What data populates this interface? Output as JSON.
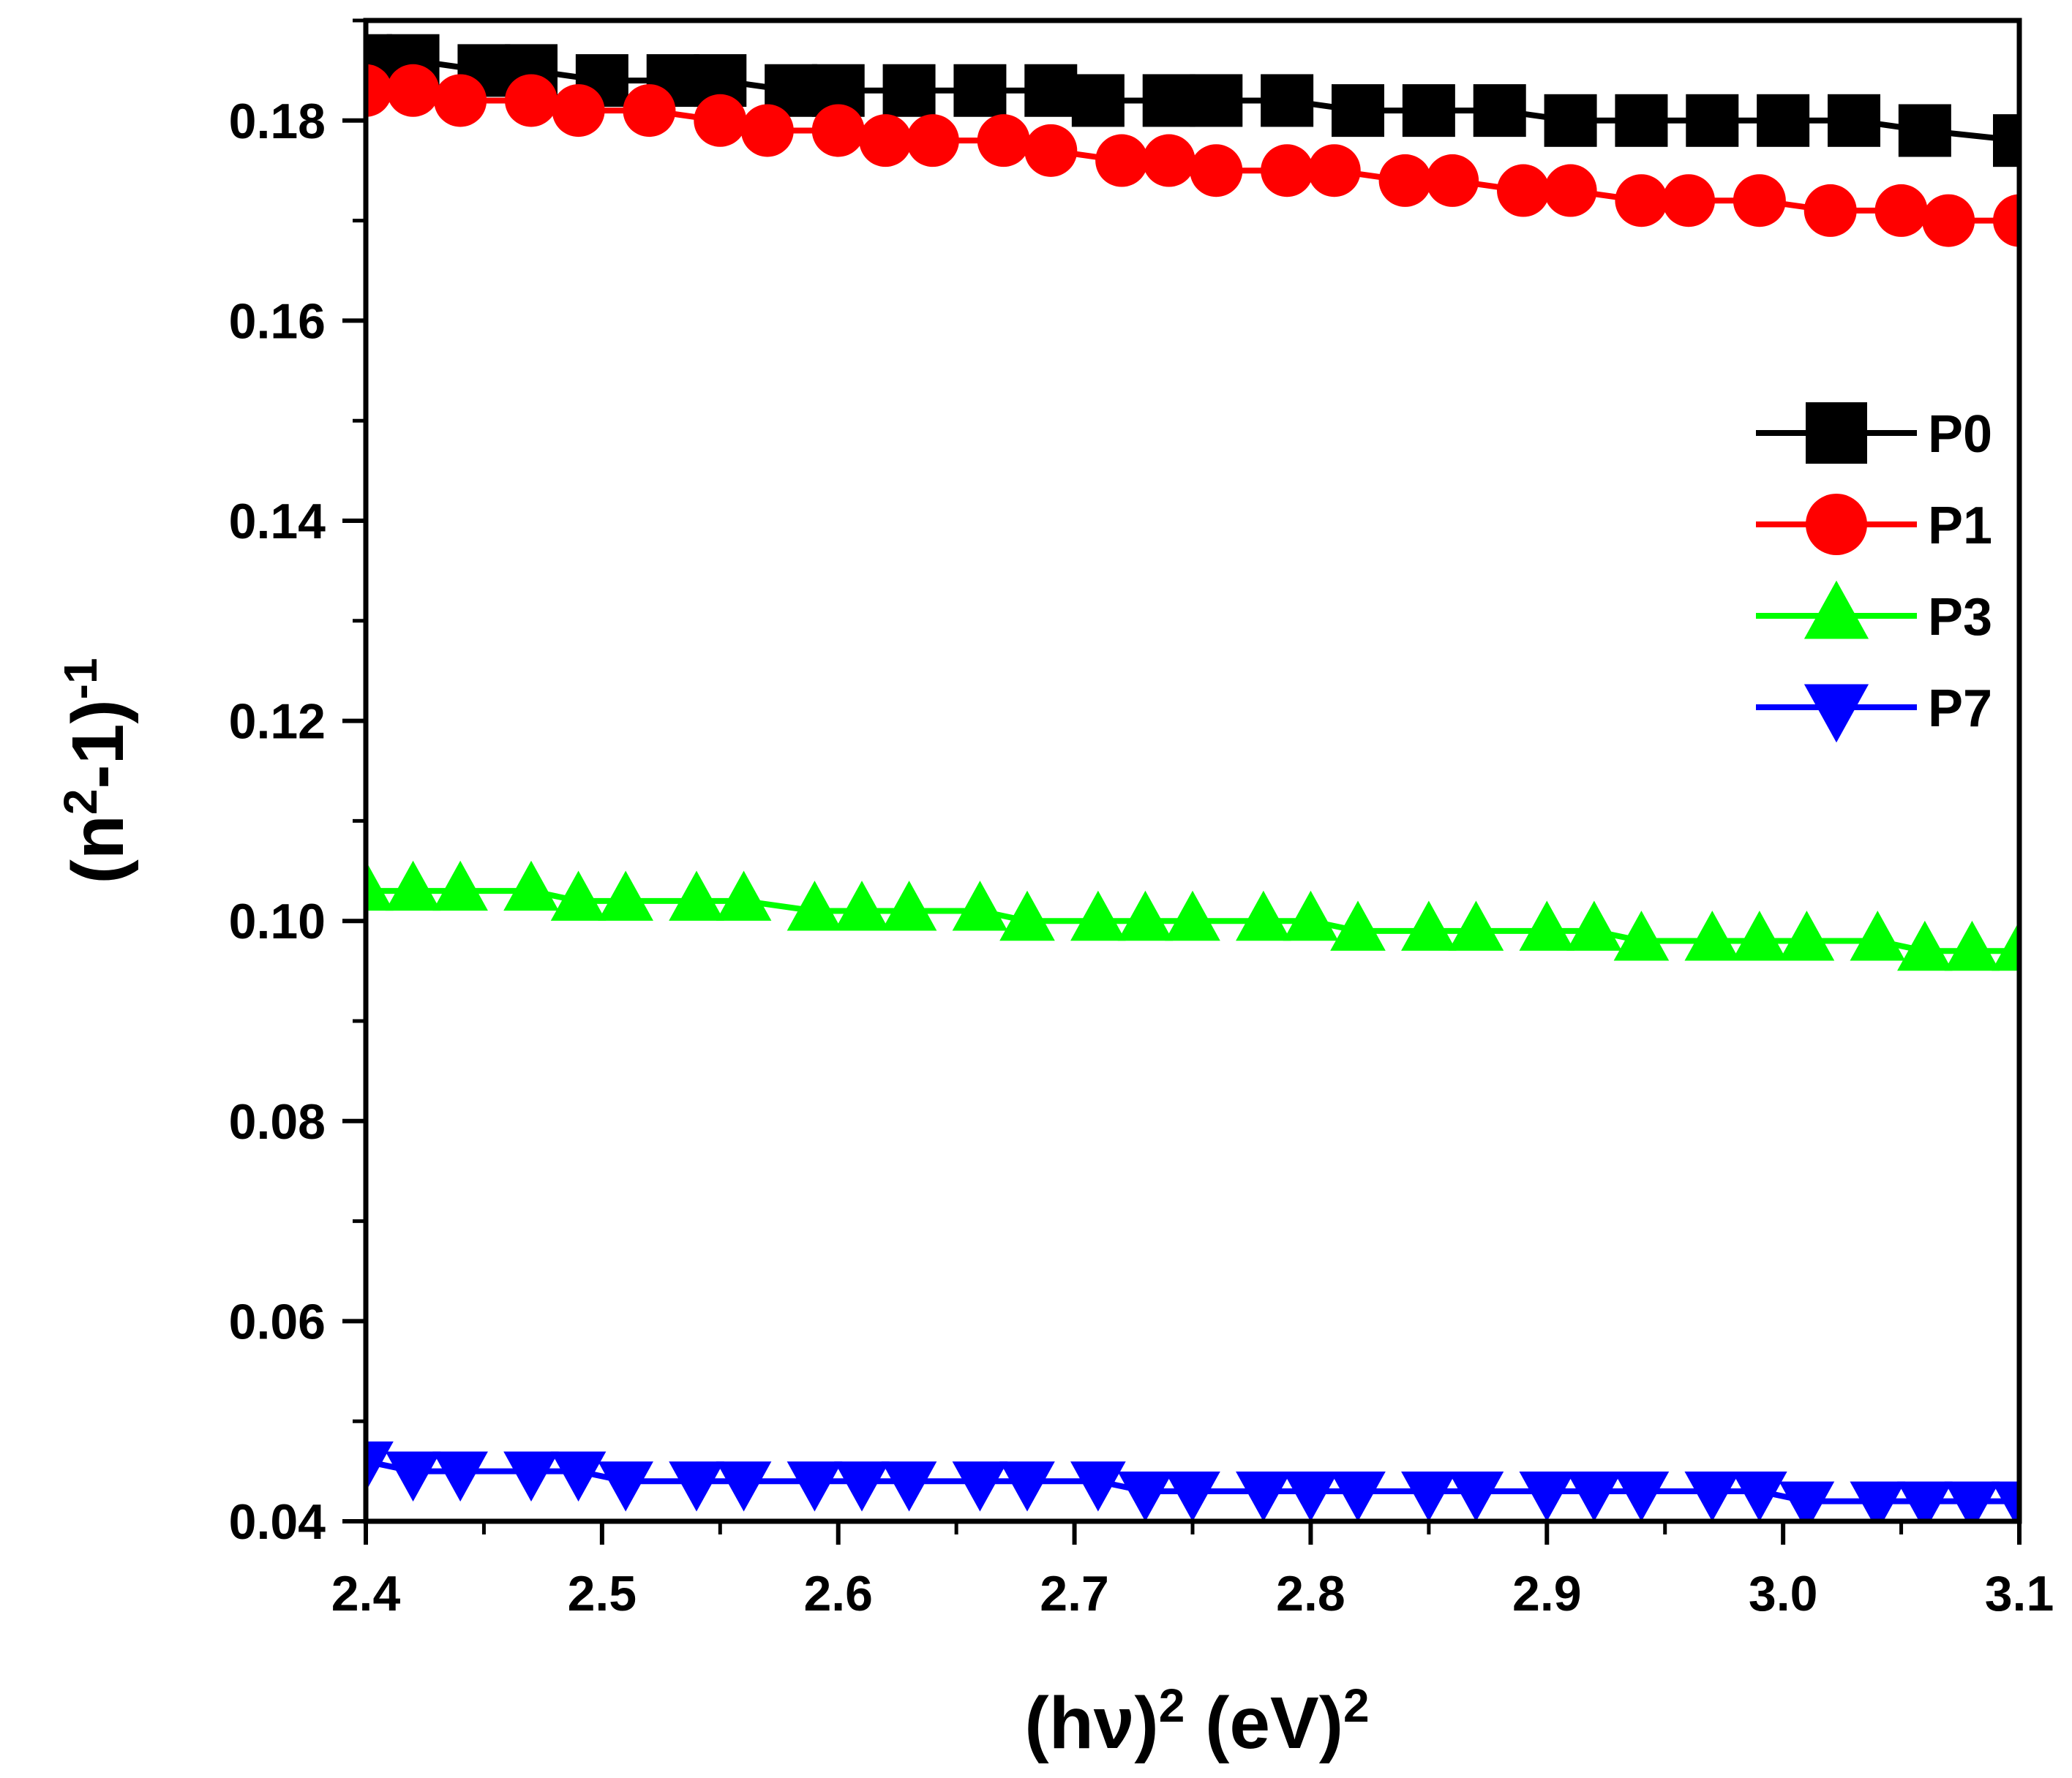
{
  "chart_data": {
    "type": "scatter",
    "title": "",
    "xlabel": "(hν)² (eV)²",
    "ylabel": "(n²-1)⁻¹",
    "xlabel_parts": {
      "pre": "(hν)",
      "sup1": "2",
      "mid": " (eV)",
      "sup2": "2"
    },
    "ylabel_parts": {
      "pre": "(n",
      "sup1": "2",
      "mid": "-1)",
      "sup2": "-1"
    },
    "xlim": [
      2.4,
      3.1
    ],
    "ylim": [
      0.04,
      0.19
    ],
    "xticks": [
      "2.4",
      "2.5",
      "2.6",
      "2.7",
      "2.8",
      "2.9",
      "3.0",
      "3.1"
    ],
    "yticks": [
      "0.04",
      "0.06",
      "0.08",
      "0.10",
      "0.12",
      "0.14",
      "0.16",
      "0.18"
    ],
    "grid": false,
    "legend_position": "right",
    "series": [
      {
        "name": "P0",
        "color": "#000000",
        "marker": "square",
        "x": [
          2.4,
          2.42,
          2.45,
          2.47,
          2.5,
          2.53,
          2.55,
          2.58,
          2.6,
          2.63,
          2.66,
          2.69,
          2.71,
          2.74,
          2.76,
          2.79,
          2.82,
          2.85,
          2.88,
          2.91,
          2.94,
          2.97,
          3.0,
          3.03,
          3.06,
          3.1
        ],
        "y": [
          0.186,
          0.186,
          0.185,
          0.185,
          0.184,
          0.184,
          0.184,
          0.183,
          0.183,
          0.183,
          0.183,
          0.183,
          0.182,
          0.182,
          0.182,
          0.182,
          0.181,
          0.181,
          0.181,
          0.18,
          0.18,
          0.18,
          0.18,
          0.18,
          0.179,
          0.178
        ]
      },
      {
        "name": "P1",
        "color": "#ff0000",
        "marker": "circle",
        "x": [
          2.4,
          2.42,
          2.44,
          2.47,
          2.49,
          2.52,
          2.55,
          2.57,
          2.6,
          2.62,
          2.64,
          2.67,
          2.69,
          2.72,
          2.74,
          2.76,
          2.79,
          2.81,
          2.84,
          2.86,
          2.89,
          2.91,
          2.94,
          2.96,
          2.99,
          3.02,
          3.05,
          3.07,
          3.1
        ],
        "y": [
          0.183,
          0.183,
          0.182,
          0.182,
          0.181,
          0.181,
          0.18,
          0.179,
          0.179,
          0.178,
          0.178,
          0.178,
          0.177,
          0.176,
          0.176,
          0.175,
          0.175,
          0.175,
          0.174,
          0.174,
          0.173,
          0.173,
          0.172,
          0.172,
          0.172,
          0.171,
          0.171,
          0.17,
          0.17
        ]
      },
      {
        "name": "P3",
        "color": "#00ff00",
        "marker": "triangle-up",
        "x": [
          2.4,
          2.42,
          2.44,
          2.47,
          2.49,
          2.51,
          2.54,
          2.56,
          2.59,
          2.61,
          2.63,
          2.66,
          2.68,
          2.71,
          2.73,
          2.75,
          2.78,
          2.8,
          2.82,
          2.85,
          2.87,
          2.9,
          2.92,
          2.94,
          2.97,
          2.99,
          3.01,
          3.04,
          3.06,
          3.08,
          3.1
        ],
        "y": [
          0.103,
          0.103,
          0.103,
          0.103,
          0.102,
          0.102,
          0.102,
          0.102,
          0.101,
          0.101,
          0.101,
          0.101,
          0.1,
          0.1,
          0.1,
          0.1,
          0.1,
          0.1,
          0.099,
          0.099,
          0.099,
          0.099,
          0.099,
          0.098,
          0.098,
          0.098,
          0.098,
          0.098,
          0.097,
          0.097,
          0.097
        ]
      },
      {
        "name": "P7",
        "color": "#0000ff",
        "marker": "triangle-down",
        "x": [
          2.4,
          2.42,
          2.44,
          2.47,
          2.49,
          2.51,
          2.54,
          2.56,
          2.59,
          2.61,
          2.63,
          2.66,
          2.68,
          2.71,
          2.73,
          2.75,
          2.78,
          2.8,
          2.82,
          2.85,
          2.87,
          2.9,
          2.92,
          2.94,
          2.97,
          2.99,
          3.01,
          3.04,
          3.06,
          3.08,
          3.1
        ],
        "y": [
          0.046,
          0.045,
          0.045,
          0.045,
          0.045,
          0.044,
          0.044,
          0.044,
          0.044,
          0.044,
          0.044,
          0.044,
          0.044,
          0.044,
          0.043,
          0.043,
          0.043,
          0.043,
          0.043,
          0.043,
          0.043,
          0.043,
          0.043,
          0.043,
          0.043,
          0.043,
          0.042,
          0.042,
          0.042,
          0.042,
          0.042
        ]
      }
    ]
  }
}
